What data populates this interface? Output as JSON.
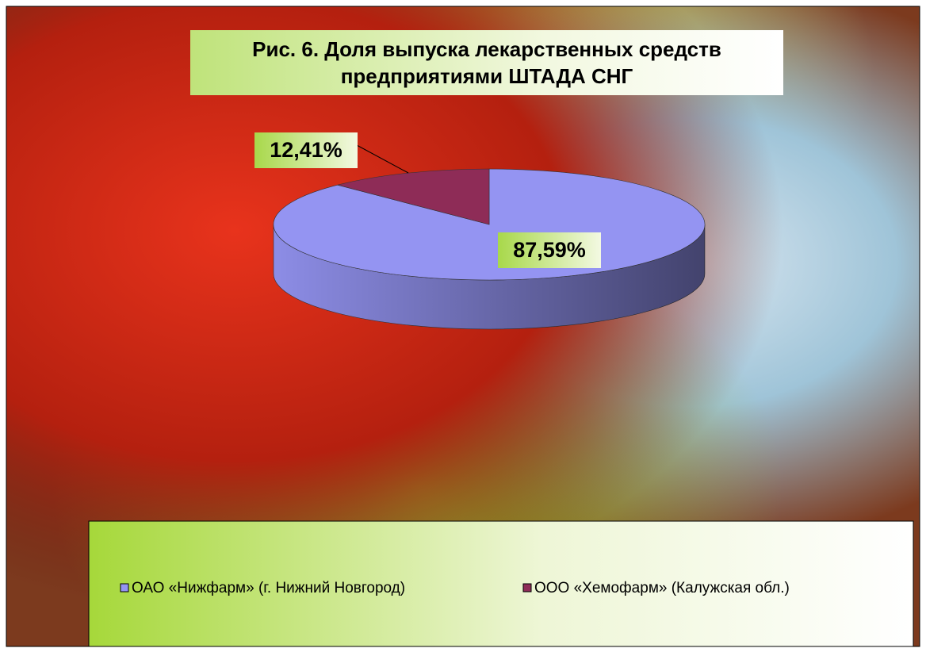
{
  "chart_data": {
    "type": "pie",
    "title": "Рис. 6. Доля выпуска лекарственных средств предприятиями ШТАДА СНГ",
    "categories": [
      "ОАО «Нижфарм» (г. Нижний Новгород)",
      "ООО «Хемофарм» (Калужская обл.)"
    ],
    "values": [
      87.59,
      12.41
    ],
    "value_labels": [
      "87,59%",
      "12,41%"
    ],
    "colors": [
      "#9494f2",
      "#8e2c57"
    ],
    "legend": "bottom"
  }
}
